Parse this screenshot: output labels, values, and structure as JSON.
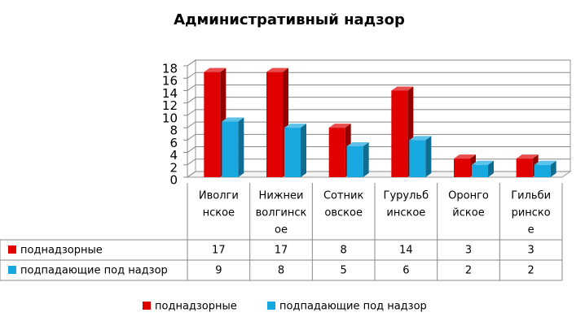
{
  "chart_data": {
    "type": "bar3d",
    "title": "Административный надзор",
    "categories": [
      [
        "Иволги",
        "нское"
      ],
      [
        "Нижнеи",
        "волгинск",
        "ое"
      ],
      [
        "Сотник",
        "овское"
      ],
      [
        "Гурульб",
        "инское"
      ],
      [
        "Оронго",
        "йское"
      ],
      [
        "Гильби",
        "ринско",
        "е"
      ]
    ],
    "series": [
      {
        "name": "поднадзорные",
        "color": "#e00000",
        "values": [
          17,
          17,
          8,
          14,
          3,
          3
        ]
      },
      {
        "name": "подпадающие под надзор",
        "color": "#18a8e0",
        "values": [
          9,
          8,
          5,
          6,
          2,
          2
        ]
      }
    ],
    "ylim": [
      0,
      18
    ],
    "yticks": [
      0,
      2,
      4,
      6,
      8,
      10,
      12,
      14,
      16,
      18
    ],
    "grid": true,
    "legend": "bottom"
  }
}
